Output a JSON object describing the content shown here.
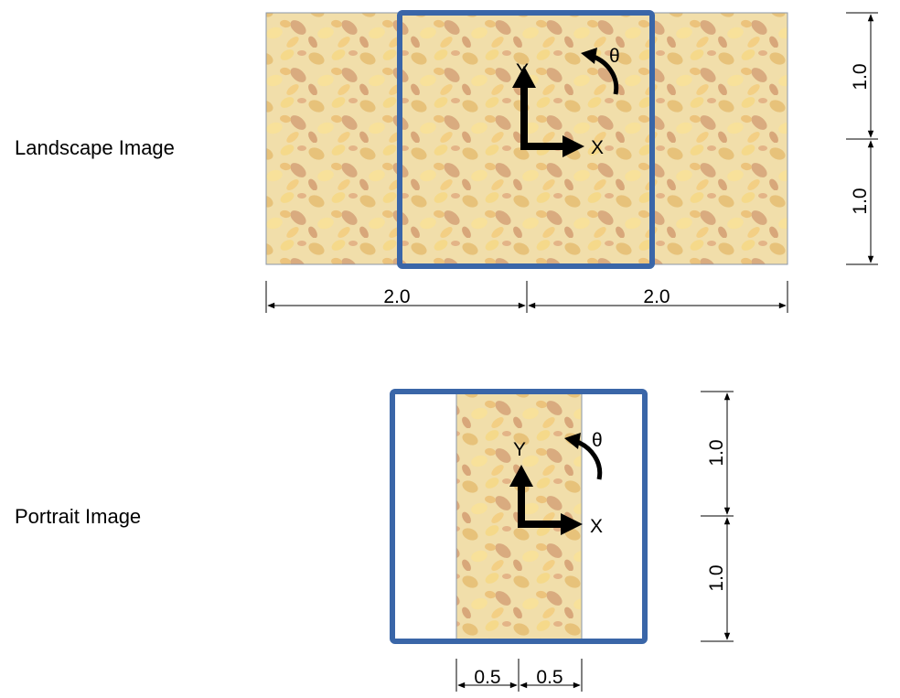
{
  "landscape": {
    "caption": "Landscape Image",
    "axis_x": "X",
    "axis_y": "Y",
    "rotation": "θ",
    "dim_width_left": "2.0",
    "dim_width_right": "2.0",
    "dim_height_top": "1.0",
    "dim_height_bottom": "1.0"
  },
  "portrait": {
    "caption": "Portrait Image",
    "axis_x": "X",
    "axis_y": "Y",
    "rotation": "θ",
    "dim_width_left": "0.5",
    "dim_width_right": "0.5",
    "dim_height_top": "1.0",
    "dim_height_bottom": "1.0"
  },
  "colors": {
    "frame": "#3a66a8",
    "leaf_base": "#f1deaa",
    "dimension": "#000000"
  }
}
